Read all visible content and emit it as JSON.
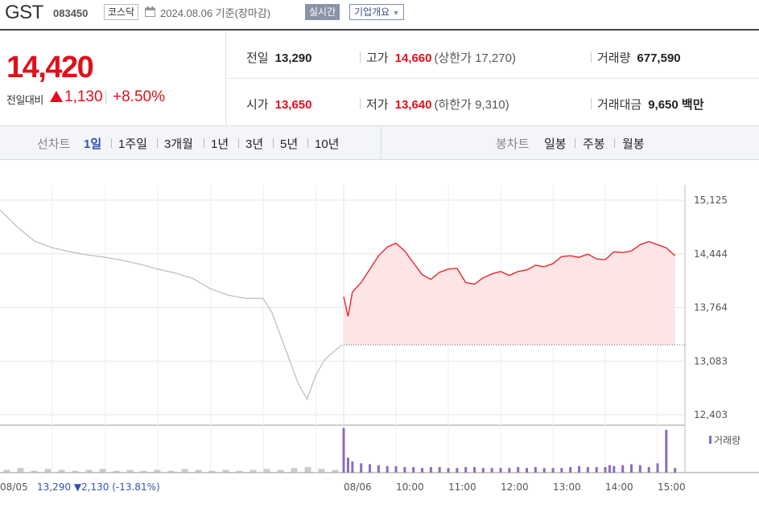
{
  "header": {
    "name": "GST",
    "code": "083450",
    "market": "코스닥",
    "date": "2024.08.06 기준(장마감)",
    "realtime_label": "실시간",
    "overview_label": "기업개요"
  },
  "quote": {
    "price": "14,420",
    "change_label": "전일대비",
    "change": "1,130",
    "change_pct": "+8.50%",
    "up_color": "#e0101a"
  },
  "stats": {
    "prev_close": {
      "label": "전일",
      "value": "13,290"
    },
    "high": {
      "label": "고가",
      "value": "14,660",
      "note": "(상한가 17,270)"
    },
    "volume": {
      "label": "거래량",
      "value": "677,590"
    },
    "open": {
      "label": "시가",
      "value": "13,650"
    },
    "low": {
      "label": "저가",
      "value": "13,640",
      "note": "(하한가 9,310)"
    },
    "amount": {
      "label": "거래대금",
      "value": "9,650 백만"
    }
  },
  "tabs": {
    "line_label": "선차트",
    "line_items": [
      "1일",
      "1주일",
      "3개월",
      "1년",
      "3년",
      "5년",
      "10년"
    ],
    "selected": "1일",
    "candle_label": "봉차트",
    "candle_items": [
      "일봉",
      "주봉",
      "월봉"
    ]
  },
  "chart_data": {
    "type": "line",
    "title": "",
    "y_ticks": [
      "15,125",
      "14,444",
      "13,764",
      "13,083",
      "12,403"
    ],
    "ylim": [
      12403,
      15125
    ],
    "baseline": 13290,
    "x_labels": [
      "08/05",
      "08/06",
      "10:00",
      "11:00",
      "12:00",
      "13:00",
      "14:00",
      "15:00"
    ],
    "prev_day_summary": {
      "date": "08/05",
      "close": "13,290",
      "change": "▼2,130",
      "pct": "(-13.81%)"
    },
    "volume_label": "거래량",
    "series": [
      {
        "day": "08/05",
        "color": "#bbbbbb",
        "x": [
          "09:00",
          "09:20",
          "09:40",
          "10:00",
          "10:20",
          "10:40",
          "11:00",
          "11:20",
          "11:40",
          "12:00",
          "12:20",
          "12:40",
          "13:00",
          "13:20",
          "13:40",
          "14:00",
          "14:10",
          "14:20",
          "14:30",
          "14:40",
          "14:50",
          "15:00",
          "15:10",
          "15:20",
          "15:30"
        ],
        "values": [
          15000,
          14780,
          14600,
          14520,
          14470,
          14430,
          14400,
          14360,
          14310,
          14250,
          14200,
          14130,
          14000,
          13920,
          13880,
          13880,
          13700,
          13400,
          13100,
          12800,
          12600,
          12900,
          13100,
          13200,
          13290
        ]
      },
      {
        "day": "08/06",
        "color": "#e8262e",
        "x": [
          "09:00",
          "09:05",
          "09:10",
          "09:20",
          "09:30",
          "09:40",
          "09:50",
          "10:00",
          "10:10",
          "10:20",
          "10:30",
          "10:40",
          "10:50",
          "11:00",
          "11:10",
          "11:20",
          "11:30",
          "11:40",
          "11:50",
          "12:00",
          "12:10",
          "12:20",
          "12:30",
          "12:40",
          "12:50",
          "13:00",
          "13:10",
          "13:20",
          "13:30",
          "13:40",
          "13:50",
          "14:00",
          "14:05",
          "14:10",
          "14:20",
          "14:30",
          "14:40",
          "14:50",
          "15:00",
          "15:10",
          "15:20"
        ],
        "values": [
          13900,
          13650,
          13960,
          14080,
          14250,
          14420,
          14530,
          14580,
          14480,
          14330,
          14180,
          14120,
          14210,
          14250,
          14260,
          14080,
          14060,
          14140,
          14190,
          14220,
          14170,
          14220,
          14240,
          14300,
          14280,
          14320,
          14410,
          14420,
          14400,
          14440,
          14380,
          14370,
          14420,
          14470,
          14460,
          14480,
          14560,
          14600,
          14560,
          14520,
          14420
        ]
      }
    ],
    "volume": {
      "series": [
        {
          "day": "08/05",
          "color": "#aaaaaa",
          "values": [
            3,
            5,
            2,
            4,
            3,
            2,
            3,
            4,
            2,
            3,
            2,
            3,
            2,
            4,
            3,
            2,
            3,
            2,
            3,
            4,
            3,
            5,
            6,
            4,
            3
          ]
        },
        {
          "day": "08/06",
          "color": "#8b6cc0",
          "values": [
            48,
            16,
            12,
            10,
            9,
            8,
            7,
            7,
            6,
            6,
            5,
            6,
            6,
            5,
            5,
            6,
            6,
            5,
            5,
            5,
            5,
            6,
            5,
            6,
            5,
            5,
            5,
            6,
            7,
            6,
            6,
            6,
            8,
            7,
            8,
            9,
            8,
            6,
            10,
            46,
            5
          ]
        }
      ]
    }
  }
}
